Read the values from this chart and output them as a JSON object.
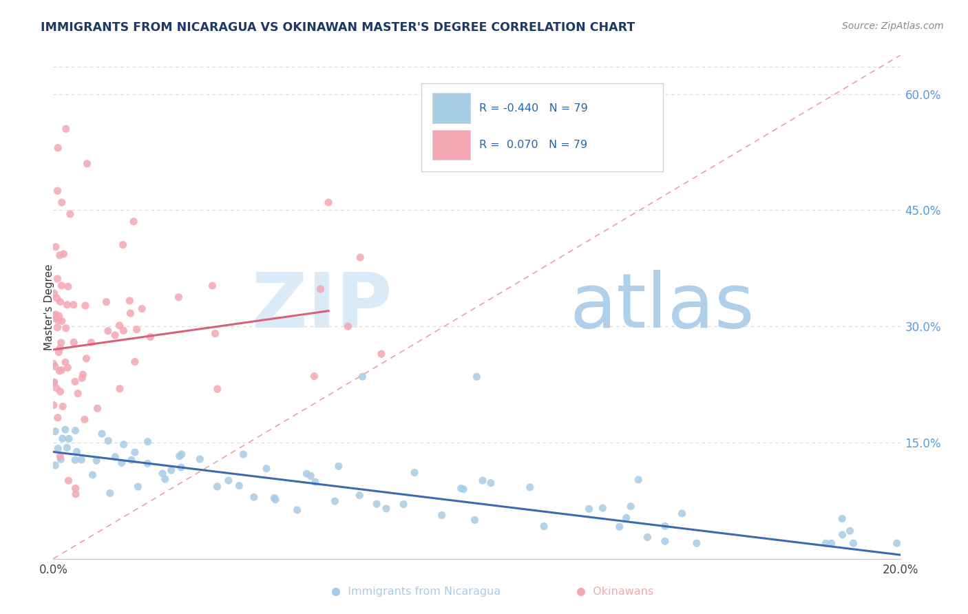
{
  "title": "IMMIGRANTS FROM NICARAGUA VS OKINAWAN MASTER'S DEGREE CORRELATION CHART",
  "source": "Source: ZipAtlas.com",
  "ylabel": "Master's Degree",
  "xlim": [
    0.0,
    0.2
  ],
  "ylim": [
    0.0,
    0.65
  ],
  "xtick_positions": [
    0.0,
    0.05,
    0.1,
    0.15,
    0.2
  ],
  "xtick_labels": [
    "0.0%",
    "",
    "",
    "",
    "20.0%"
  ],
  "ytick_right_positions": [
    0.15,
    0.3,
    0.45,
    0.6
  ],
  "ytick_right_labels": [
    "15.0%",
    "30.0%",
    "45.0%",
    "60.0%"
  ],
  "blue_scatter_color": "#a8cce4",
  "pink_scatter_color": "#f4a7b2",
  "blue_line_color": "#3a6ab0",
  "pink_line_color": "#d9607a",
  "dashed_line_color": "#e8a0aa",
  "watermark_zip_color": "#daeaf7",
  "watermark_atlas_color": "#b0cfe8",
  "title_color": "#1f3864",
  "source_color": "#888888",
  "right_axis_color": "#5b9bd5",
  "legend_text_color_R": "#333333",
  "legend_text_color_N": "#2166ac",
  "bottom_legend_blue_color": "#a8cce4",
  "bottom_legend_pink_color": "#f4a7b2",
  "grid_color": "#d8d8d8",
  "spine_bottom_color": "#cccccc",
  "blue_line_y0": 0.138,
  "blue_line_y1": 0.005,
  "pink_line_x0": 0.0,
  "pink_line_y0": 0.27,
  "pink_line_x1": 0.065,
  "pink_line_y1": 0.32
}
